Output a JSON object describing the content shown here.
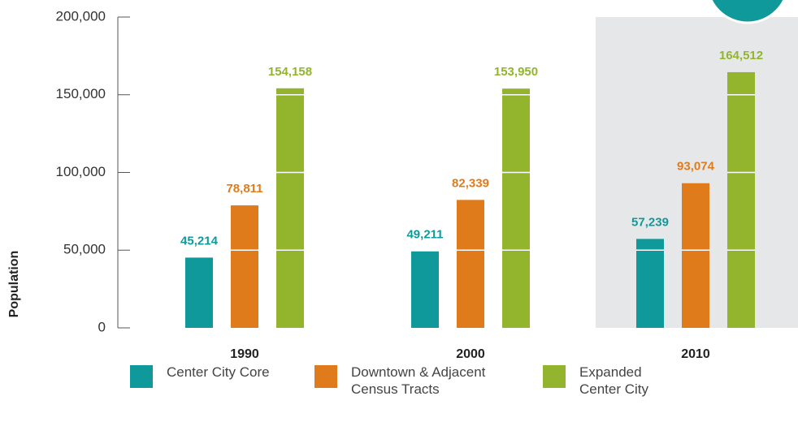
{
  "chart_data": {
    "type": "bar",
    "categories": [
      "1990",
      "2000",
      "2010"
    ],
    "series": [
      {
        "name": "Center City Core",
        "color": "#10999a",
        "values": [
          45214,
          49211,
          57239
        ],
        "value_labels": [
          "45,214",
          "49,211",
          "57,239"
        ]
      },
      {
        "name": "Downtown & Adjacent Census Tracts",
        "color": "#e07b1c",
        "values": [
          78811,
          82339,
          93074
        ],
        "value_labels": [
          "78,811",
          "82,339",
          "93,074"
        ]
      },
      {
        "name": "Expanded Center City",
        "color": "#93b52e",
        "values": [
          154158,
          153950,
          164512
        ],
        "value_labels": [
          "154,158",
          "153,950",
          "164,512"
        ]
      }
    ],
    "y_label": "Population",
    "ylim": [
      0,
      200000
    ],
    "yticks": [
      {
        "value": 0,
        "label": "0"
      },
      {
        "value": 50000,
        "label": "50,000"
      },
      {
        "value": 100000,
        "label": "100,000"
      },
      {
        "value": 150000,
        "label": "150,000"
      },
      {
        "value": 200000,
        "label": "200,000"
      }
    ]
  }
}
